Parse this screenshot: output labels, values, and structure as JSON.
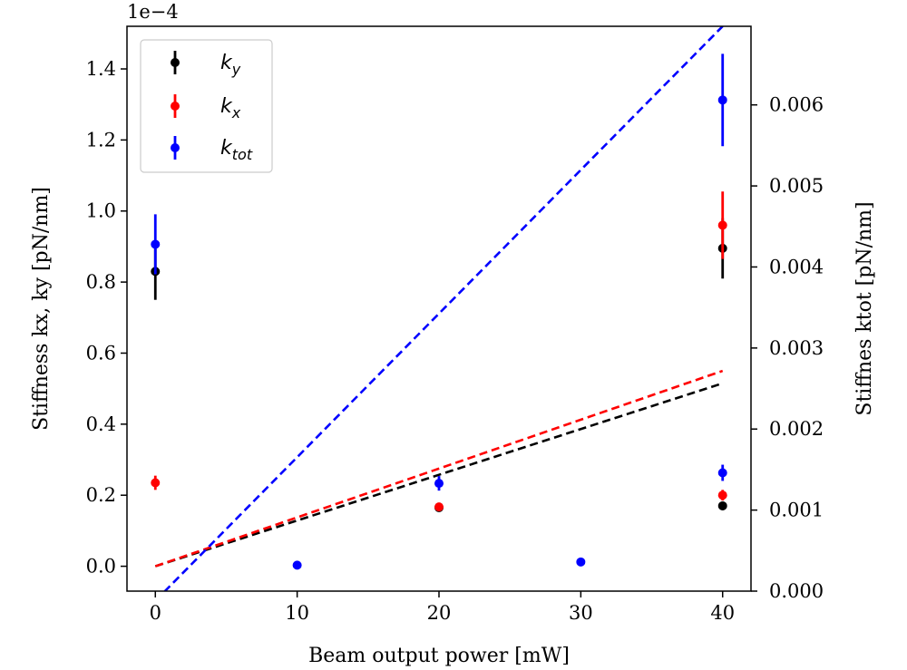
{
  "chart_data": {
    "type": "scatter",
    "xlabel": "Beam output power [mW]",
    "ylabel_left": "Stiffness kx, ky [pN/nm]",
    "ylabel_right": "Stiffnes ktot [pN/nm]",
    "left_axis_offset_label": "1e−4",
    "xlim": [
      -2,
      42
    ],
    "ylim_left": [
      -0.07,
      1.52
    ],
    "ylim_right": [
      0.0,
      0.00697
    ],
    "x_ticks": [
      0,
      10,
      20,
      30,
      40
    ],
    "y_ticks_left": [
      0.0,
      0.2,
      0.4,
      0.6,
      0.8,
      1.0,
      1.2,
      1.4
    ],
    "y_ticks_right": [
      0.0,
      0.001,
      0.002,
      0.003,
      0.004,
      0.005,
      0.006
    ],
    "legend_position": "upper-left",
    "series": [
      {
        "name": "k_y",
        "color": "#000000",
        "axis": "left",
        "points": [
          {
            "x": 0,
            "y": 0.83,
            "err": 0.08
          },
          {
            "x": 20,
            "y": 0.165,
            "err": 0.012
          },
          {
            "x": 40,
            "y": 0.895,
            "err": 0.085
          },
          {
            "x": 40,
            "y": 0.17,
            "err": 0.012
          }
        ],
        "fit": {
          "x": [
            0,
            40
          ],
          "y": [
            0.0,
            0.515
          ]
        }
      },
      {
        "name": "k_x",
        "color": "#ff0000",
        "axis": "left",
        "points": [
          {
            "x": 0,
            "y": 0.235,
            "err": 0.02
          },
          {
            "x": 20,
            "y": 0.167,
            "err": 0.012
          },
          {
            "x": 40,
            "y": 0.96,
            "err": 0.095
          },
          {
            "x": 40,
            "y": 0.2,
            "err": 0.015
          }
        ],
        "fit": {
          "x": [
            0,
            40
          ],
          "y": [
            0.0,
            0.55
          ]
        }
      },
      {
        "name": "k_tot",
        "color": "#0000ff",
        "axis": "right",
        "points": [
          {
            "x": 0,
            "y": 0.00428,
            "err": 0.00037
          },
          {
            "x": 10,
            "y": 0.00032,
            "err": 4e-05
          },
          {
            "x": 20,
            "y": 0.00133,
            "err": 9e-05
          },
          {
            "x": 30,
            "y": 0.00036,
            "err": 4e-05
          },
          {
            "x": 40,
            "y": 0.00606,
            "err": 0.00057
          },
          {
            "x": 40,
            "y": 0.00146,
            "err": 0.0001
          }
        ],
        "fit": {
          "x": [
            0,
            40
          ],
          "y": [
            -0.00012,
            0.00697
          ]
        }
      }
    ]
  }
}
